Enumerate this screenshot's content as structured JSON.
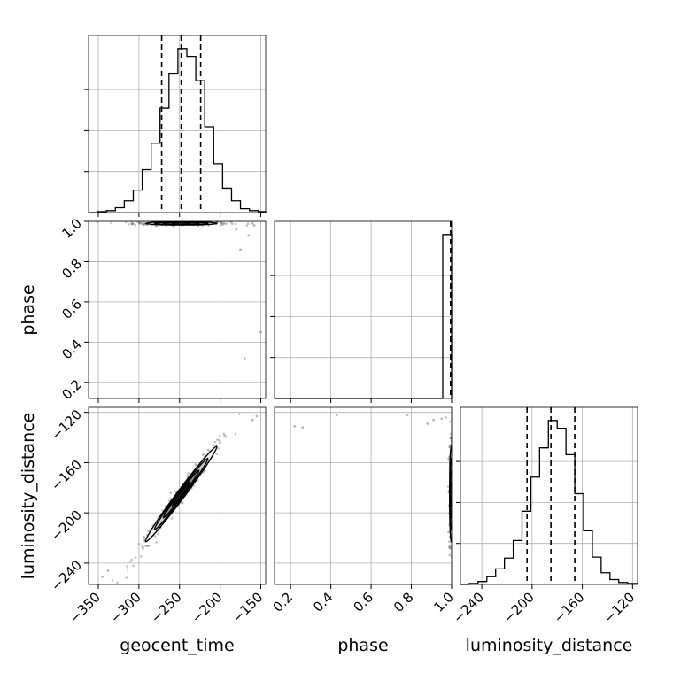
{
  "chart_data": {
    "type": "corner",
    "parameters": [
      "geocent_time",
      "phase",
      "luminosity_distance"
    ],
    "axis_labels": {
      "geocent_time": "geocent_time",
      "phase": "phase",
      "luminosity_distance": "luminosity_distance"
    },
    "ranges": {
      "geocent_time": [
        -362,
        -144
      ],
      "phase": [
        0.12,
        1.0
      ],
      "luminosity_distance": [
        -257,
        -116
      ]
    },
    "ticks": {
      "geocent_time": [
        {
          "v": -350,
          "label": "−350"
        },
        {
          "v": -300,
          "label": "−300"
        },
        {
          "v": -250,
          "label": "−250"
        },
        {
          "v": -200,
          "label": "−200"
        },
        {
          "v": -150,
          "label": "−150"
        }
      ],
      "phase": [
        {
          "v": 0.2,
          "label": "0.2"
        },
        {
          "v": 0.4,
          "label": "0.4"
        },
        {
          "v": 0.6,
          "label": "0.6"
        },
        {
          "v": 0.8,
          "label": "0.8"
        },
        {
          "v": 1.0,
          "label": "1.0"
        }
      ],
      "luminosity_distance": [
        {
          "v": -240,
          "label": "−240"
        },
        {
          "v": -200,
          "label": "−200"
        },
        {
          "v": -160,
          "label": "−160"
        },
        {
          "v": -120,
          "label": "−120"
        }
      ]
    },
    "grid": true,
    "histograms": {
      "geocent_time": {
        "edges": [
          -362,
          -351,
          -340,
          -329,
          -318,
          -307,
          -296,
          -285,
          -274,
          -263,
          -252,
          -241,
          -230,
          -219,
          -208,
          -197,
          -186,
          -175,
          -164,
          -153,
          -144
        ],
        "counts": [
          0,
          1,
          2,
          5,
          12,
          23,
          44,
          71,
          107,
          142,
          168,
          160,
          135,
          88,
          50,
          25,
          12,
          4,
          2,
          1
        ],
        "quantiles": [
          -272,
          -248,
          -224
        ]
      },
      "phase": {
        "edges": [
          0.12,
          0.164,
          0.208,
          0.252,
          0.296,
          0.34,
          0.384,
          0.428,
          0.472,
          0.516,
          0.56,
          0.604,
          0.648,
          0.692,
          0.736,
          0.78,
          0.824,
          0.868,
          0.912,
          0.956,
          1.0
        ],
        "counts": [
          0,
          0,
          0,
          0,
          0,
          0,
          0,
          0,
          0,
          0,
          0,
          0,
          0,
          0,
          0,
          0,
          0,
          0,
          0,
          1000
        ],
        "quantiles": [
          0.998,
          0.999,
          1.0
        ]
      },
      "luminosity_distance": {
        "edges": [
          -257,
          -250,
          -243,
          -236,
          -229,
          -222,
          -215,
          -208,
          -201,
          -194,
          -187,
          -180,
          -173,
          -166,
          -159,
          -152,
          -145,
          -138,
          -131,
          -124,
          -116
        ],
        "counts": [
          0,
          1,
          3,
          8,
          16,
          27,
          45,
          75,
          110,
          140,
          168,
          160,
          133,
          93,
          55,
          28,
          12,
          5,
          2,
          1
        ],
        "quantiles": [
          -204,
          -185,
          -166
        ]
      }
    },
    "scatter": [
      {
        "x": "geocent_time",
        "y": "phase",
        "center": [
          -248,
          0.99
        ],
        "spread": [
          22,
          0.004
        ],
        "corr": 0,
        "outliers": [
          [
            -180,
            0.96
          ],
          [
            -165,
            0.93
          ],
          [
            -175,
            0.86
          ],
          [
            -160,
            0.99
          ],
          [
            -170,
            0.32
          ],
          [
            -150,
            0.45
          ],
          [
            -158,
            0.98
          ]
        ]
      },
      {
        "x": "geocent_time",
        "y": "luminosity_distance",
        "center": [
          -248,
          -185
        ],
        "spread": [
          22,
          19
        ],
        "corr": 0.99,
        "outliers": [
          [
            -345,
            -251
          ],
          [
            -338,
            -246
          ],
          [
            -155,
            -123
          ],
          [
            -160,
            -126
          ]
        ]
      },
      {
        "x": "phase",
        "y": "luminosity_distance",
        "center": [
          0.998,
          -185
        ],
        "spread": [
          0.004,
          19
        ],
        "corr": 0,
        "outliers": [
          [
            0.22,
            -131
          ],
          [
            0.26,
            -132
          ],
          [
            0.43,
            -122
          ],
          [
            0.78,
            -122
          ],
          [
            0.88,
            -129
          ],
          [
            0.91,
            -126
          ],
          [
            0.95,
            -125
          ],
          [
            0.97,
            -124
          ]
        ]
      }
    ]
  }
}
